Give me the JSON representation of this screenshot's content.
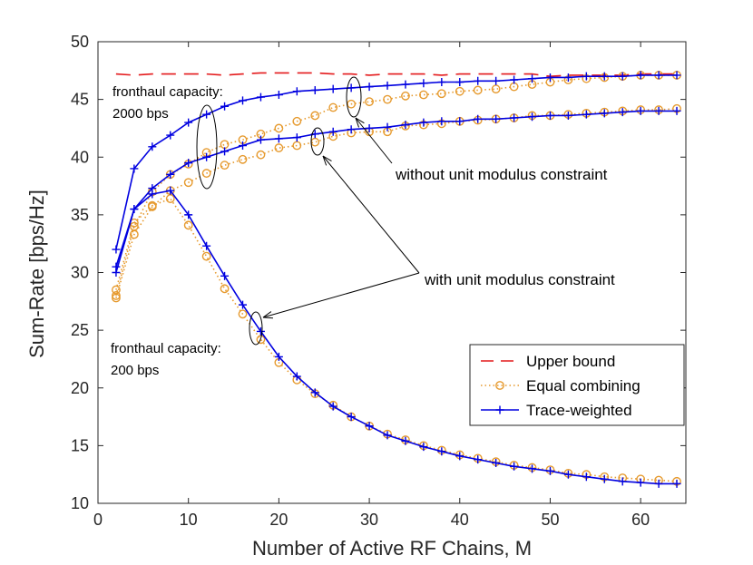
{
  "chart_data": {
    "type": "line",
    "xlabel": "Number of Active RF Chains, M",
    "ylabel": "Sum-Rate [bps/Hz]",
    "xlim": [
      0,
      65
    ],
    "ylim": [
      10,
      50
    ],
    "xticks": [
      0,
      10,
      20,
      30,
      40,
      50,
      60
    ],
    "yticks": [
      10,
      15,
      20,
      25,
      30,
      35,
      40,
      45,
      50
    ],
    "x": [
      2,
      4,
      6,
      8,
      10,
      12,
      14,
      16,
      18,
      20,
      22,
      24,
      26,
      28,
      30,
      32,
      34,
      36,
      38,
      40,
      42,
      44,
      46,
      48,
      50,
      52,
      54,
      56,
      58,
      60,
      62,
      64
    ],
    "series": [
      {
        "name": "Upper bound",
        "group": "upper",
        "style": "dashed",
        "color": "#e41a1c",
        "values": [
          47.2,
          47.1,
          47.2,
          47.2,
          47.2,
          47.2,
          47.1,
          47.2,
          47.3,
          47.3,
          47.3,
          47.3,
          47.2,
          47.2,
          47.1,
          47.2,
          47.2,
          47.2,
          47.1,
          47.2,
          47.2,
          47.2,
          47.2,
          47.2,
          47.0,
          47.1,
          47.1,
          47.1,
          47.1,
          47.2,
          47.2,
          47.2
        ]
      },
      {
        "name": "Equal combining",
        "group": "2000 bps, without unit modulus constraint",
        "style": "dotted-circle",
        "color": "#e69a2e",
        "values": [
          28.0,
          34.0,
          37.0,
          38.5,
          39.4,
          40.4,
          41.1,
          41.5,
          42.0,
          42.5,
          43.1,
          43.6,
          44.3,
          44.6,
          44.8,
          45.0,
          45.3,
          45.4,
          45.5,
          45.7,
          45.8,
          45.9,
          46.1,
          46.3,
          46.5,
          46.7,
          46.8,
          46.9,
          47.0,
          47.1,
          47.1,
          47.1
        ]
      },
      {
        "name": "Trace-weighted",
        "group": "2000 bps, without unit modulus constraint",
        "style": "solid-plus",
        "color": "#0000e0",
        "values": [
          32.0,
          39.0,
          40.9,
          41.9,
          43.0,
          43.7,
          44.4,
          44.9,
          45.2,
          45.4,
          45.7,
          45.8,
          45.9,
          46.0,
          46.1,
          46.2,
          46.3,
          46.4,
          46.5,
          46.5,
          46.6,
          46.6,
          46.7,
          46.8,
          46.9,
          46.9,
          47.0,
          47.0,
          47.0,
          47.1,
          47.1,
          47.1
        ]
      },
      {
        "name": "Equal combining",
        "group": "2000 bps, with unit modulus constraint",
        "style": "dotted-circle",
        "color": "#e69a2e",
        "values": [
          27.8,
          33.3,
          35.7,
          37.1,
          37.8,
          38.6,
          39.3,
          39.8,
          40.2,
          40.8,
          41.0,
          41.3,
          41.8,
          42.1,
          42.2,
          42.2,
          42.7,
          42.8,
          42.9,
          43.1,
          43.2,
          43.3,
          43.4,
          43.6,
          43.6,
          43.7,
          43.8,
          43.9,
          44.0,
          44.1,
          44.1,
          44.2
        ]
      },
      {
        "name": "Trace-weighted",
        "group": "2000 bps, with unit modulus constraint",
        "style": "solid-plus",
        "color": "#0000e0",
        "values": [
          30.5,
          35.5,
          37.3,
          38.5,
          39.5,
          40.0,
          40.5,
          41.0,
          41.5,
          41.6,
          41.7,
          42.0,
          42.2,
          42.4,
          42.5,
          42.6,
          42.8,
          43.0,
          43.1,
          43.1,
          43.3,
          43.3,
          43.4,
          43.5,
          43.6,
          43.6,
          43.7,
          43.8,
          43.9,
          44.0,
          44.0,
          44.0
        ]
      },
      {
        "name": "Equal combining",
        "group": "200 bps",
        "style": "dotted-circle",
        "color": "#e69a2e",
        "values": [
          28.5,
          34.3,
          35.8,
          36.4,
          34.1,
          31.4,
          28.6,
          26.4,
          24.2,
          22.2,
          20.7,
          19.5,
          18.5,
          17.5,
          16.7,
          16.0,
          15.5,
          15.0,
          14.6,
          14.2,
          13.9,
          13.6,
          13.3,
          13.1,
          12.9,
          12.6,
          12.5,
          12.3,
          12.2,
          12.1,
          12.0,
          11.9
        ]
      },
      {
        "name": "Trace-weighted",
        "group": "200 bps",
        "style": "solid-plus",
        "color": "#0000e0",
        "values": [
          30.0,
          35.5,
          36.8,
          37.1,
          35.0,
          32.3,
          29.7,
          27.2,
          24.9,
          22.7,
          21.0,
          19.6,
          18.4,
          17.5,
          16.7,
          15.9,
          15.4,
          14.9,
          14.5,
          14.1,
          13.8,
          13.5,
          13.2,
          13.0,
          12.8,
          12.5,
          12.3,
          12.1,
          11.9,
          11.8,
          11.7,
          11.7
        ]
      }
    ],
    "legend": {
      "position": "lower-right",
      "entries": [
        {
          "label": "Upper bound",
          "style": "dashed",
          "color": "#e41a1c"
        },
        {
          "label": "Equal combining",
          "style": "dotted-circle",
          "color": "#e69a2e"
        },
        {
          "label": "Trace-weighted",
          "style": "solid-plus",
          "color": "#0000e0"
        }
      ]
    },
    "annotations": {
      "fronthaul_2000": [
        "fronthaul capacity:",
        "2000 bps"
      ],
      "fronthaul_200": [
        "fronthaul capacity:",
        "200 bps"
      ],
      "without_unit": "without unit modulus constraint",
      "with_unit": "with unit modulus constraint"
    },
    "grid": false
  }
}
